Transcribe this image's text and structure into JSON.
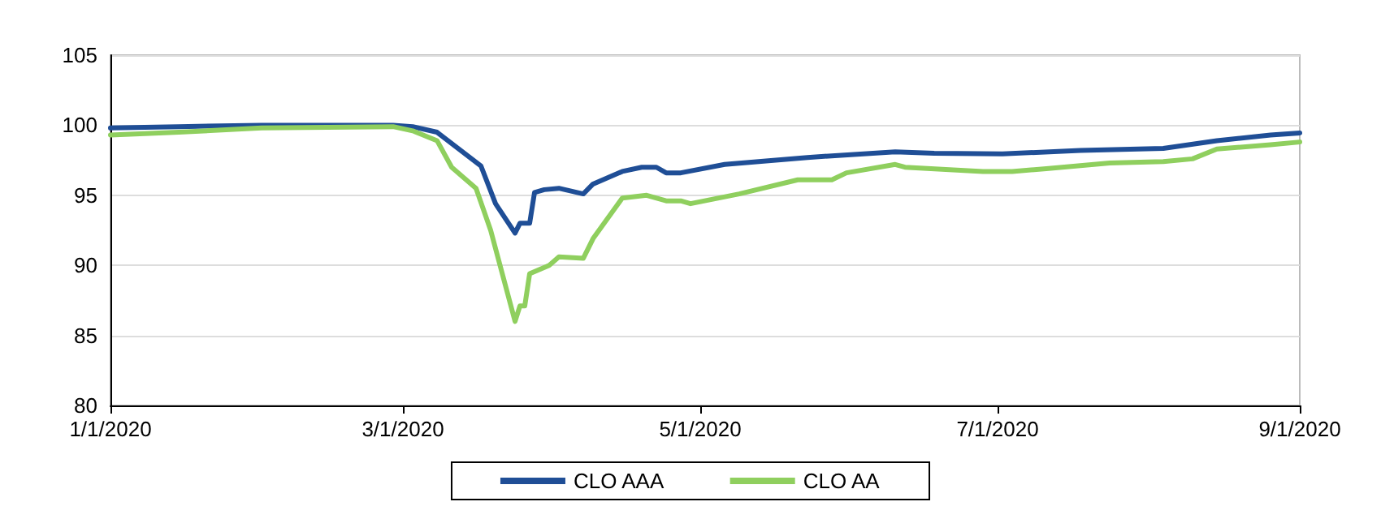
{
  "chart_data": {
    "type": "line",
    "xlim": [
      "2020-01-01",
      "2020-09-01"
    ],
    "xticks": [
      {
        "value": "2020-01-01",
        "label": "1/1/2020"
      },
      {
        "value": "2020-03-01",
        "label": "3/1/2020"
      },
      {
        "value": "2020-05-01",
        "label": "5/1/2020"
      },
      {
        "value": "2020-07-01",
        "label": "7/1/2020"
      },
      {
        "value": "2020-09-01",
        "label": "9/1/2020"
      }
    ],
    "ylim": [
      80,
      105
    ],
    "yticks": [
      80,
      85,
      90,
      95,
      100,
      105
    ],
    "grid": "y",
    "legend": "bottom",
    "marker": "none",
    "line_style": "solid",
    "series": [
      {
        "name": "CLO AAA",
        "color": "#1f4e96",
        "x": [
          "2020-01-01",
          "2020-01-15",
          "2020-02-01",
          "2020-02-15",
          "2020-02-28",
          "2020-03-03",
          "2020-03-08",
          "2020-03-17",
          "2020-03-20",
          "2020-03-24",
          "2020-03-25",
          "2020-03-27",
          "2020-03-28",
          "2020-03-30",
          "2020-04-02",
          "2020-04-07",
          "2020-04-09",
          "2020-04-15",
          "2020-04-19",
          "2020-04-22",
          "2020-04-24",
          "2020-04-27",
          "2020-05-06",
          "2020-05-23",
          "2020-06-10",
          "2020-06-18",
          "2020-07-02",
          "2020-07-18",
          "2020-08-04",
          "2020-08-15",
          "2020-08-26",
          "2020-09-01"
        ],
        "values": [
          99.8,
          99.9,
          100.0,
          100.0,
          100.0,
          99.9,
          99.5,
          97.1,
          94.4,
          92.3,
          93.0,
          93.0,
          95.2,
          95.4,
          95.5,
          95.1,
          95.8,
          96.7,
          97.0,
          97.0,
          96.6,
          96.6,
          97.2,
          97.7,
          98.1,
          98.0,
          97.95,
          98.2,
          98.35,
          98.9,
          99.3,
          99.45
        ]
      },
      {
        "name": "CLO AA",
        "color": "#8fcf5e",
        "x": [
          "2020-01-01",
          "2020-01-15",
          "2020-02-01",
          "2020-02-28",
          "2020-03-03",
          "2020-03-08",
          "2020-03-11",
          "2020-03-16",
          "2020-03-19",
          "2020-03-24",
          "2020-03-25",
          "2020-03-26",
          "2020-03-27",
          "2020-03-31",
          "2020-04-02",
          "2020-04-07",
          "2020-04-09",
          "2020-04-15",
          "2020-04-20",
          "2020-04-24",
          "2020-04-27",
          "2020-04-29",
          "2020-05-09",
          "2020-05-21",
          "2020-05-28",
          "2020-05-31",
          "2020-06-10",
          "2020-06-12",
          "2020-06-28",
          "2020-07-04",
          "2020-07-11",
          "2020-07-24",
          "2020-08-04",
          "2020-08-10",
          "2020-08-15",
          "2020-08-26",
          "2020-09-01"
        ],
        "values": [
          99.3,
          99.5,
          99.8,
          99.9,
          99.6,
          98.9,
          97.0,
          95.5,
          92.5,
          86.0,
          87.1,
          87.1,
          89.4,
          90.0,
          90.6,
          90.5,
          91.9,
          94.8,
          95.0,
          94.6,
          94.6,
          94.4,
          95.1,
          96.1,
          96.1,
          96.6,
          97.2,
          97.0,
          96.7,
          96.7,
          96.9,
          97.3,
          97.4,
          97.6,
          98.3,
          98.6,
          98.8
        ]
      }
    ]
  }
}
